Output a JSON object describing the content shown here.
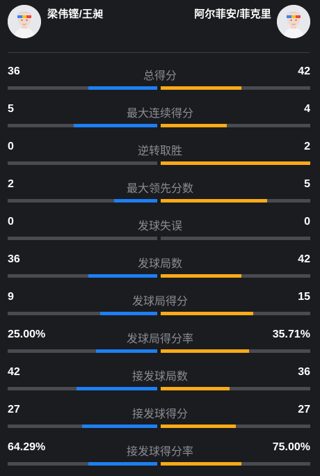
{
  "teams": {
    "left": {
      "name": "梁伟铿/王昶",
      "avatar_icon": "player-avatar-icon"
    },
    "right": {
      "name": "阿尔菲安/菲克里",
      "avatar_icon": "player-avatar-icon"
    }
  },
  "colors": {
    "left_bar": "#1e7ff2",
    "right_bar": "#fbab17",
    "track": "#4a4b50",
    "background": "#1b1c20"
  },
  "stats": [
    {
      "label": "总得分",
      "left": "36",
      "right": "42",
      "left_fill": 0.46,
      "right_fill": 0.54
    },
    {
      "label": "最大连续得分",
      "left": "5",
      "right": "4",
      "left_fill": 0.56,
      "right_fill": 0.44
    },
    {
      "label": "逆转取胜",
      "left": "0",
      "right": "2",
      "left_fill": 0.0,
      "right_fill": 1.0
    },
    {
      "label": "最大领先分数",
      "left": "2",
      "right": "5",
      "left_fill": 0.29,
      "right_fill": 0.71
    },
    {
      "label": "发球失误",
      "left": "0",
      "right": "0",
      "left_fill": 0.0,
      "right_fill": 0.0
    },
    {
      "label": "发球局数",
      "left": "36",
      "right": "42",
      "left_fill": 0.46,
      "right_fill": 0.54
    },
    {
      "label": "发球局得分",
      "left": "9",
      "right": "15",
      "left_fill": 0.38,
      "right_fill": 0.62
    },
    {
      "label": "发球局得分率",
      "left": "25.00%",
      "right": "35.71%",
      "left_fill": 0.41,
      "right_fill": 0.59
    },
    {
      "label": "接发球局数",
      "left": "42",
      "right": "36",
      "left_fill": 0.54,
      "right_fill": 0.46
    },
    {
      "label": "接发球得分",
      "left": "27",
      "right": "27",
      "left_fill": 0.5,
      "right_fill": 0.5
    },
    {
      "label": "接发球得分率",
      "left": "64.29%",
      "right": "75.00%",
      "left_fill": 0.46,
      "right_fill": 0.54
    }
  ]
}
